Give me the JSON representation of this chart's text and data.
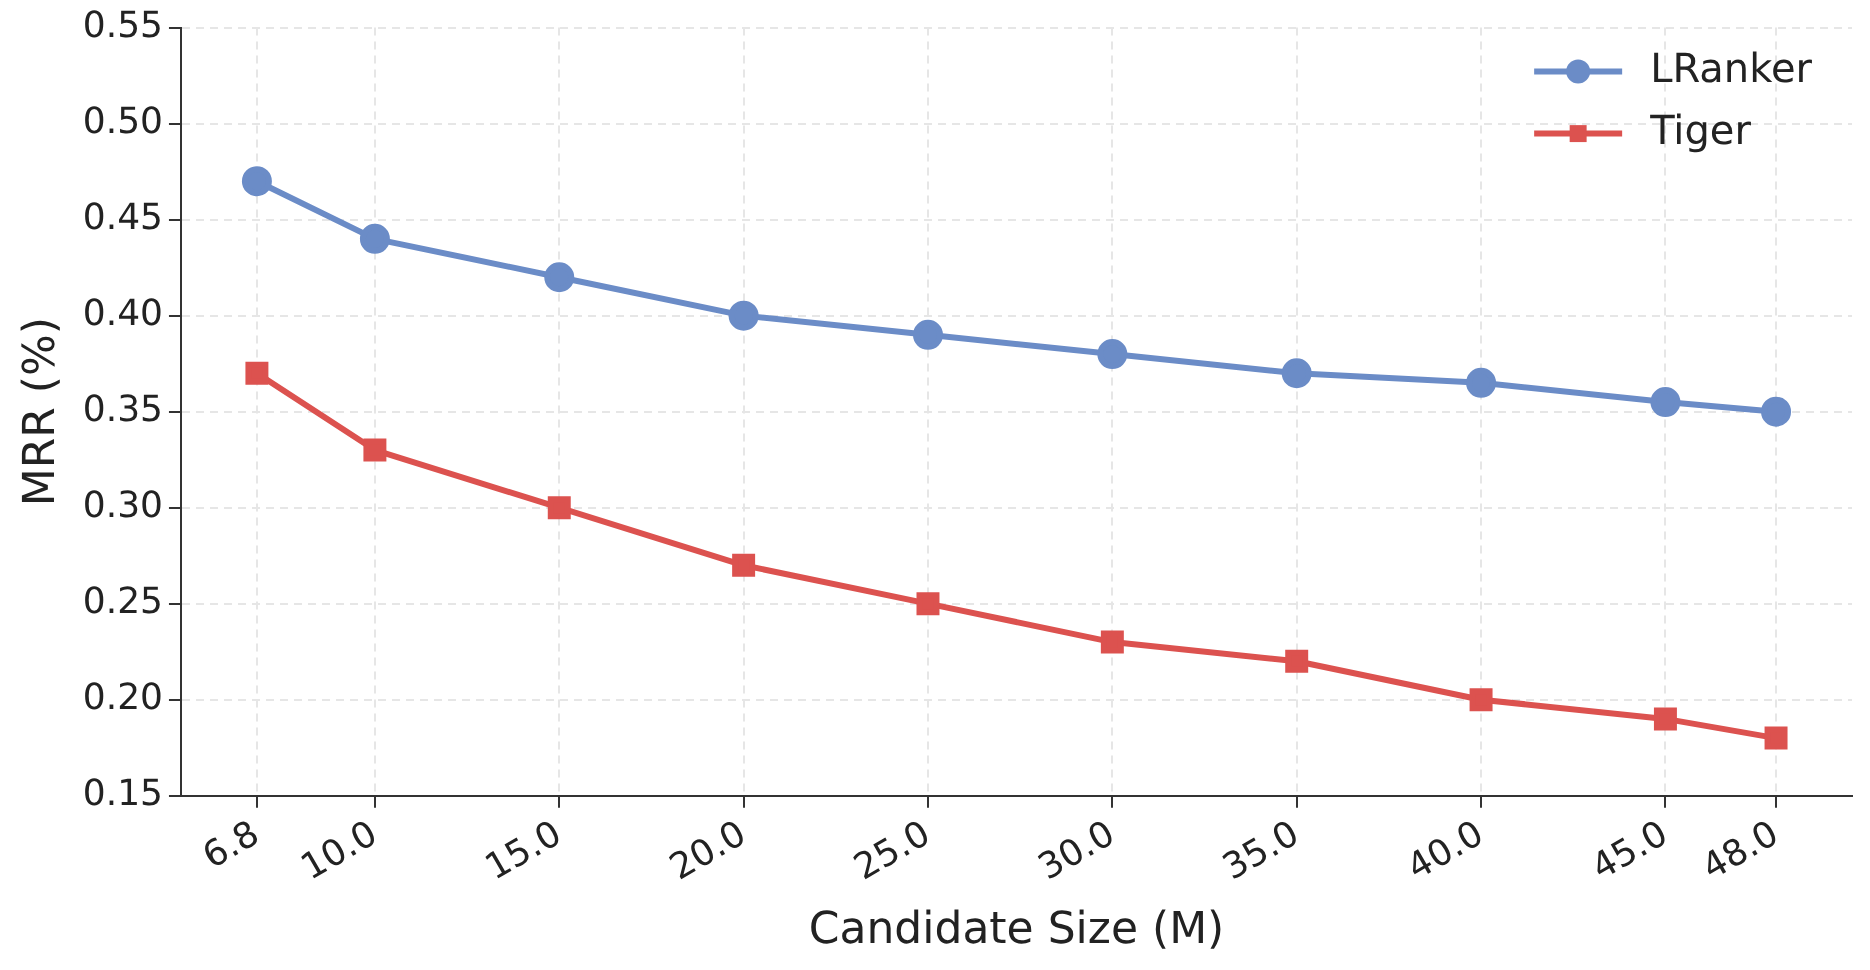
{
  "chart_data": {
    "type": "line",
    "xlabel": "Candidate Size (M)",
    "ylabel": "MRR (%)",
    "x": [
      6.8,
      10,
      15,
      20,
      25,
      30,
      35,
      40,
      45,
      48
    ],
    "series": [
      {
        "name": "LRanker",
        "color": "#6b8cc7",
        "marker": "circle",
        "values": [
          0.47,
          0.44,
          0.42,
          0.4,
          0.39,
          0.38,
          0.37,
          0.365,
          0.355,
          0.35
        ]
      },
      {
        "name": "Tiger",
        "color": "#dc524f",
        "marker": "square",
        "values": [
          0.37,
          0.33,
          0.3,
          0.27,
          0.25,
          0.23,
          0.22,
          0.2,
          0.19,
          0.18
        ]
      }
    ],
    "xlim": [
      4.74,
      50.06
    ],
    "xticks": [
      {
        "value": 6.8,
        "label": "6.8"
      },
      {
        "value": 10,
        "label": "10.0"
      },
      {
        "value": 15,
        "label": "15.0"
      },
      {
        "value": 20,
        "label": "20.0"
      },
      {
        "value": 25,
        "label": "25.0"
      },
      {
        "value": 30,
        "label": "30.0"
      },
      {
        "value": 35,
        "label": "35.0"
      },
      {
        "value": 40,
        "label": "40.0"
      },
      {
        "value": 45,
        "label": "45.0"
      },
      {
        "value": 48,
        "label": "48.0"
      }
    ],
    "ylim": [
      0.15,
      0.55
    ],
    "yticks": [
      {
        "value": 0.15,
        "label": "0.15"
      },
      {
        "value": 0.2,
        "label": "0.20"
      },
      {
        "value": 0.25,
        "label": "0.25"
      },
      {
        "value": 0.3,
        "label": "0.30"
      },
      {
        "value": 0.35,
        "label": "0.35"
      },
      {
        "value": 0.4,
        "label": "0.40"
      },
      {
        "value": 0.45,
        "label": "0.45"
      },
      {
        "value": 0.5,
        "label": "0.50"
      },
      {
        "value": 0.55,
        "label": "0.55"
      }
    ],
    "grid": true,
    "legend": "top right",
    "line_style": "solid"
  }
}
